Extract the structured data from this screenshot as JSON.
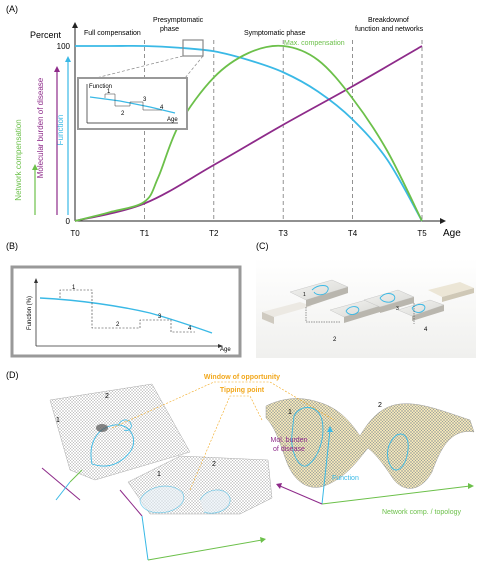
{
  "panels": {
    "a": "(A)",
    "b": "(B)",
    "c": "(C)",
    "d": "(D)"
  },
  "chart_data": {
    "type": "line",
    "title": "",
    "xlabel": "Age",
    "ylabel": "Percent",
    "x_ticks": [
      "T0",
      "T1",
      "T2",
      "T3",
      "T4",
      "T5"
    ],
    "y_ticks": [
      0,
      100
    ],
    "ylim": [
      0,
      120
    ],
    "grid": false,
    "series": [
      {
        "name": "Function",
        "color": "#3ab9e6",
        "x": [
          0,
          0.5,
          1,
          1.5,
          2,
          2.5,
          3,
          3.5,
          4,
          4.5,
          5
        ],
        "y": [
          100,
          100,
          100,
          99,
          97,
          92,
          85,
          74,
          58,
          35,
          0
        ]
      },
      {
        "name": "Molecular burden of disease",
        "color": "#8e2b8a",
        "x": [
          0,
          1,
          2,
          3,
          4,
          5
        ],
        "y": [
          0,
          10,
          32,
          55,
          77,
          100
        ]
      },
      {
        "name": "Network compensation",
        "color": "#6cc04a",
        "x": [
          0,
          0.5,
          1,
          1.2,
          1.5,
          2,
          2.5,
          3,
          3.5,
          4,
          4.5,
          5
        ],
        "y": [
          0,
          5,
          11,
          25,
          55,
          82,
          96,
          100,
          92,
          70,
          40,
          0
        ]
      }
    ]
  },
  "panel_a": {
    "phases": [
      "Full compensation",
      "Presymptomatic phase",
      "Symptomatic phase",
      "Breakdown of function and networks"
    ],
    "max_comp": "Max. compensation",
    "axis_labels": {
      "net": "Network compensation",
      "mol": "Molecular burden of disease",
      "func": "Function"
    },
    "inset": {
      "ylabel": "Function",
      "xlabel": "Age",
      "steps": [
        "1",
        "2",
        "3",
        "4"
      ]
    }
  },
  "panel_b": {
    "ylabel": "Function (%)",
    "xlabel": "Age",
    "steps": [
      "1",
      "2",
      "3",
      "4"
    ]
  },
  "panel_c": {
    "steps": [
      "1",
      "2",
      "3",
      "4"
    ]
  },
  "panel_d": {
    "window": "Window of opportunity",
    "tipping": "Tipping point",
    "mol": "Mol. burden of disease",
    "function": "Function",
    "network": "Network comp. / topology",
    "labels": [
      "1",
      "2"
    ]
  }
}
